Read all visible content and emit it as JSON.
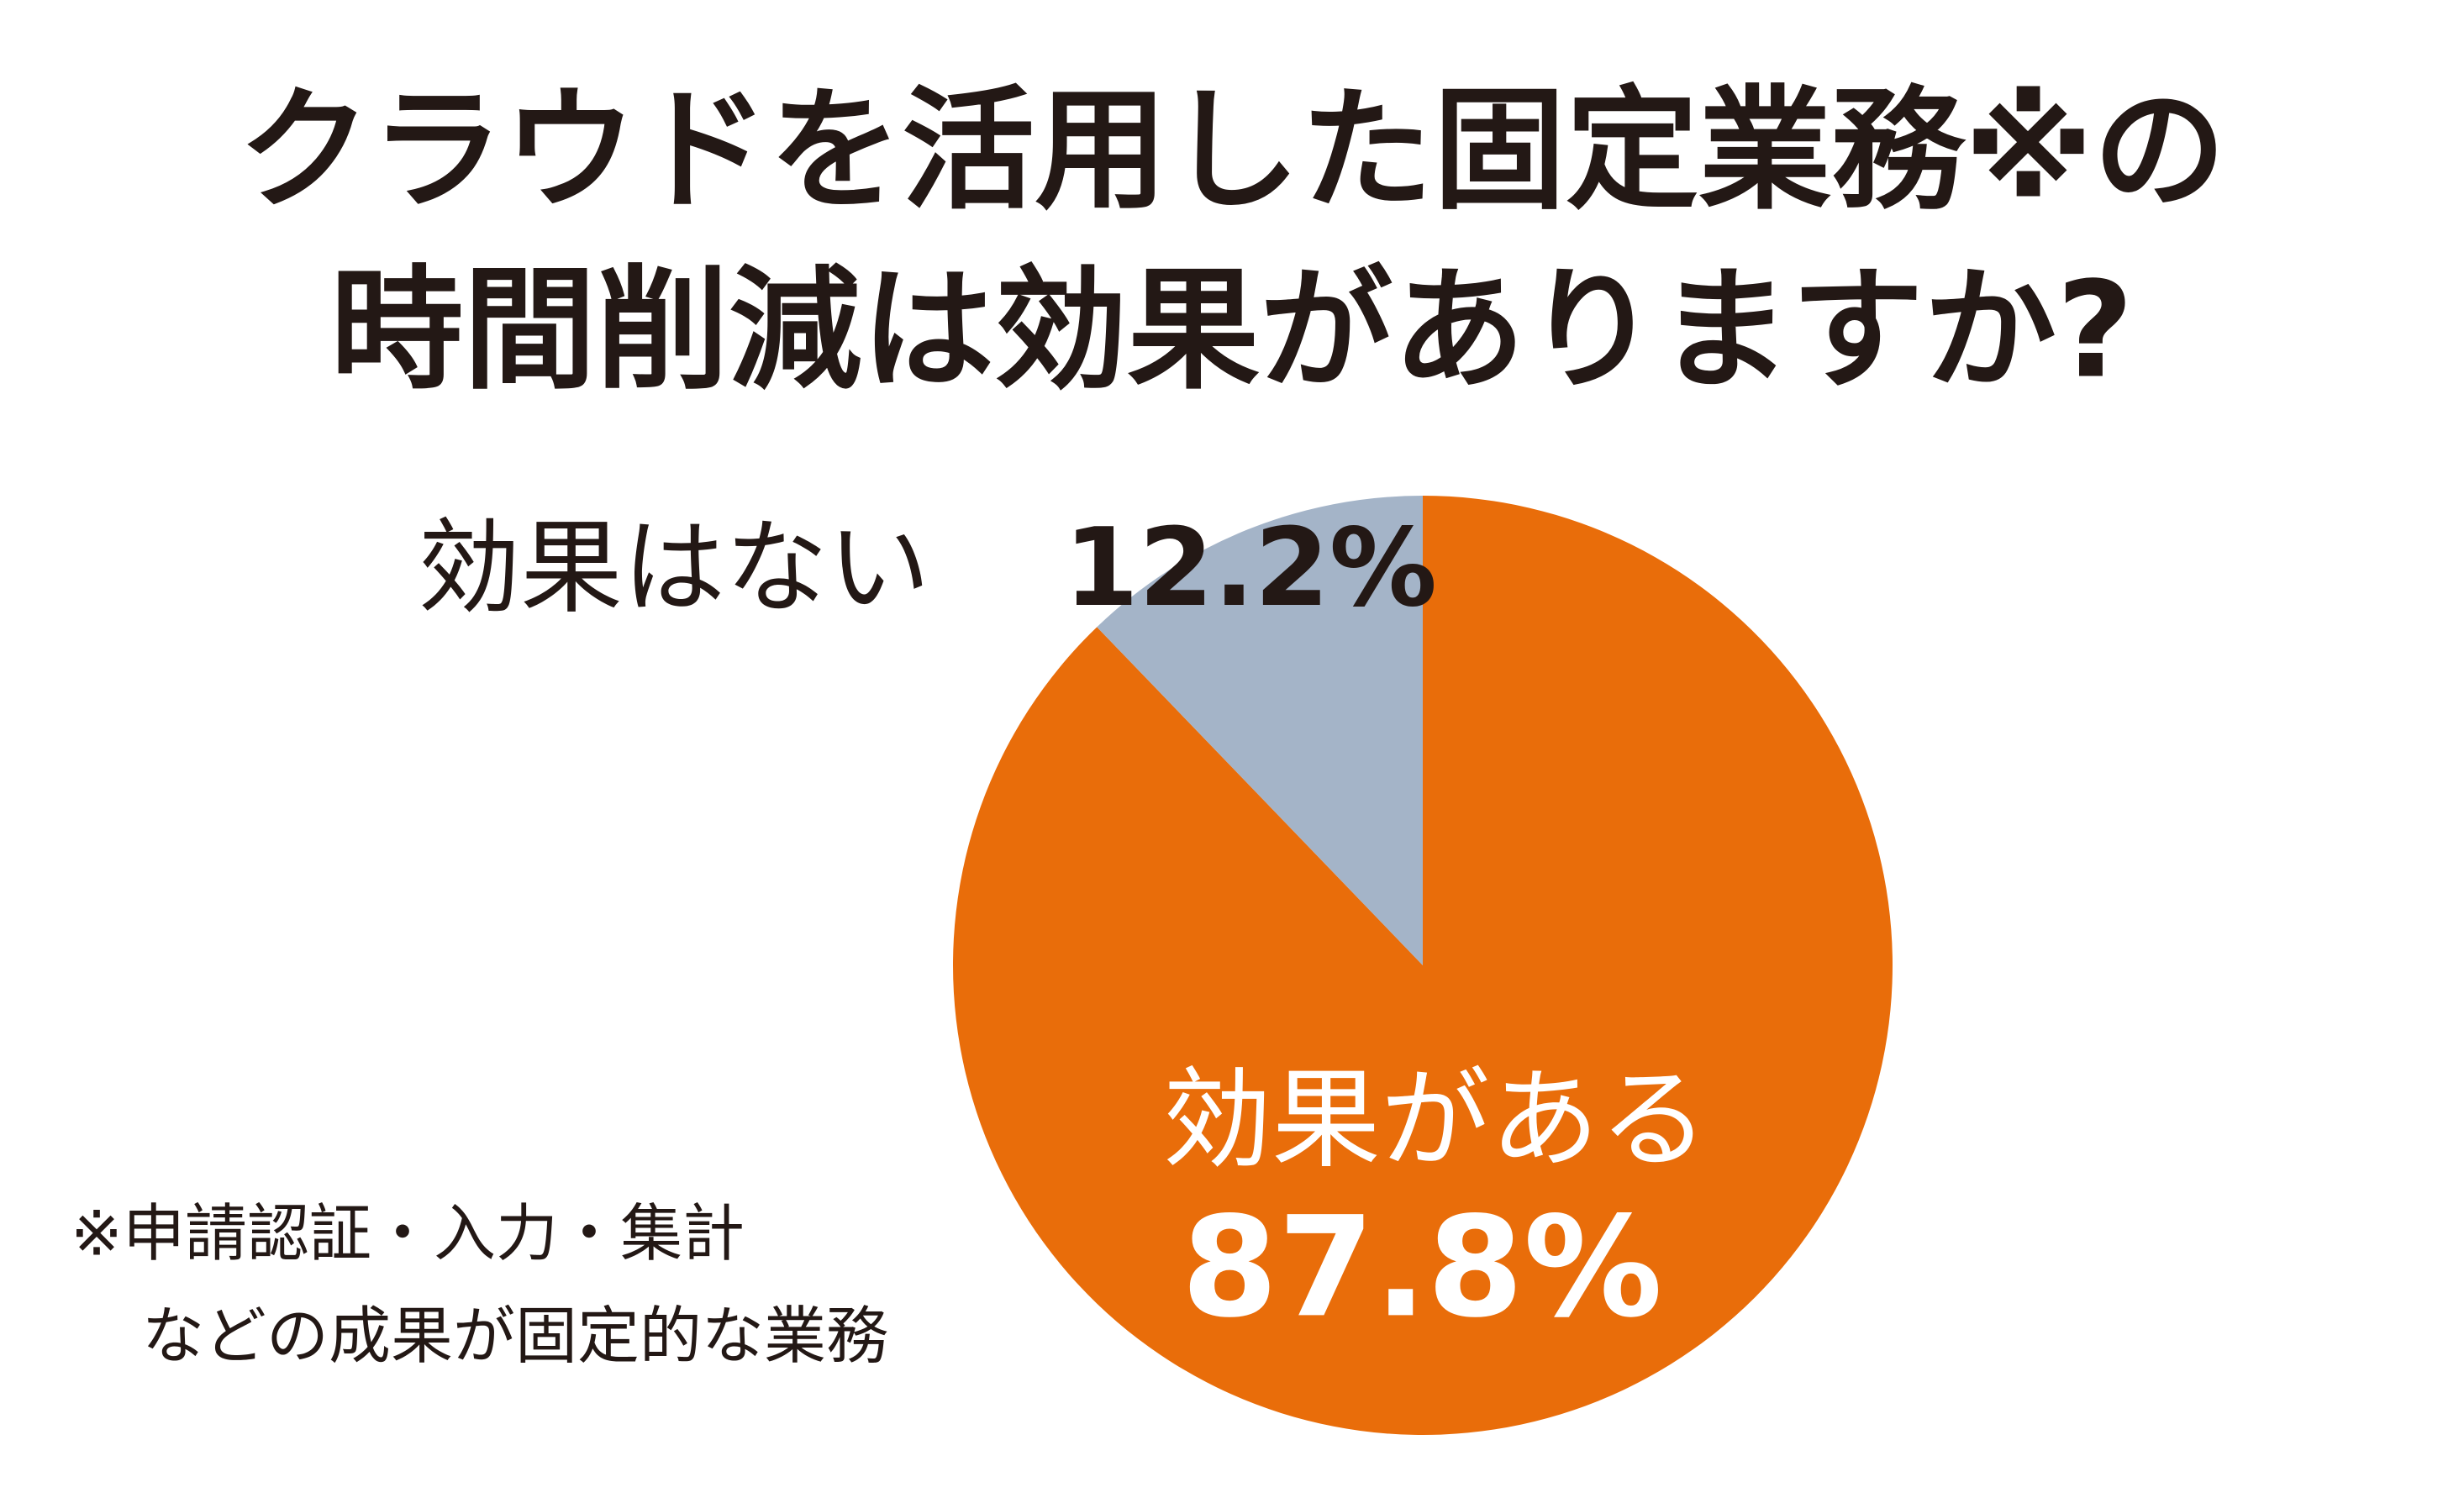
{
  "chart_data": {
    "type": "pie",
    "title": [
      "クラウドを活用した固定業務※の",
      "時間削減は効果がありますか?"
    ],
    "categories": [
      "効果がある",
      "効果はない"
    ],
    "values": [
      87.8,
      12.2
    ],
    "value_labels": [
      "87.8%",
      "12.2%"
    ],
    "colors": [
      "#e96d0a",
      "#a4b4c8"
    ],
    "footnote": [
      "※申請認証・入力・集計",
      "などの成果が固定的な業務"
    ]
  }
}
